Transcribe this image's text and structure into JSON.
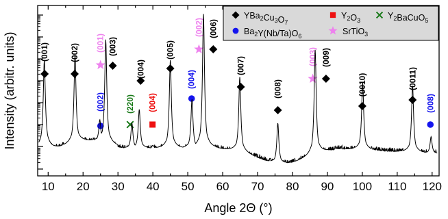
{
  "chart_data": {
    "type": "line",
    "xlabel": "Angle 2Θ (°)",
    "ylabel": "Intensity (arbitr. units)",
    "xlim": [
      7,
      122
    ],
    "x_ticks": [
      10,
      20,
      30,
      40,
      50,
      60,
      70,
      80,
      90,
      100,
      110,
      120
    ],
    "y_scale": "log",
    "y_ticks_labeled": false,
    "grid": false,
    "legend_position": "top-right",
    "colors": {
      "pattern": "#000000",
      "YBCO": "#000000",
      "BYNTO": "#1515ee",
      "Y2O3": "#ee1111",
      "SrTiO3": "#ee82ee",
      "Y2BaCuO5": "#1a7a1a",
      "legend_bg": "#d9d9d9"
    },
    "series": [
      {
        "name": "YBa₂Cu₃O₇",
        "marker": "diamond",
        "color": "#000000",
        "x": [
          9.0,
          17.6,
          28.5,
          36.5,
          45.0,
          57.3,
          65.2,
          75.8,
          89.6,
          100.0,
          114.4
        ],
        "labels": [
          "(001)",
          "(002)",
          "(003)",
          "(004)",
          "(005)",
          "(006)",
          "(007)",
          "(008)",
          "(009)",
          "(0010)",
          "(0011)"
        ]
      },
      {
        "name": "Ba₂Y(Nb/Ta)O₆",
        "marker": "circle",
        "color": "#1515ee",
        "x": [
          25.0,
          51.1,
          119.5
        ],
        "labels": [
          "(002)",
          "(004)",
          "(008)"
        ]
      },
      {
        "name": "Y₂O₃",
        "marker": "square",
        "color": "#ee1111",
        "x": [
          39.9
        ],
        "labels": [
          "(004)"
        ]
      },
      {
        "name": "SrTiO₃",
        "marker": "star",
        "color": "#ee82ee",
        "x": [
          25.0,
          53.2,
          85.8
        ],
        "labels": [
          "(001)",
          "(002)",
          "(003)"
        ]
      },
      {
        "name": "Y₂BaCuO₅",
        "marker": "x",
        "color": "#1a7a1a",
        "x": [
          33.5
        ],
        "labels": [
          "(220)"
        ]
      }
    ],
    "pattern_peaks": [
      {
        "x": 8.9,
        "level": 0.68
      },
      {
        "x": 17.7,
        "level": 0.71
      },
      {
        "x": 24.8,
        "level": 0.33
      },
      {
        "x": 26.5,
        "level": 0.8
      },
      {
        "x": 34.0,
        "level": 0.31
      },
      {
        "x": 36.1,
        "level": 0.39
      },
      {
        "x": 40.0,
        "level": 0.18
      },
      {
        "x": 45.0,
        "level": 0.68
      },
      {
        "x": 51.2,
        "level": 0.45
      },
      {
        "x": 54.5,
        "level": 0.95
      },
      {
        "x": 64.9,
        "level": 0.58
      },
      {
        "x": 75.8,
        "level": 0.31
      },
      {
        "x": 86.5,
        "level": 0.74
      },
      {
        "x": 100.1,
        "level": 0.55
      },
      {
        "x": 114.4,
        "level": 0.53
      },
      {
        "x": 119.7,
        "level": 0.23
      }
    ]
  }
}
